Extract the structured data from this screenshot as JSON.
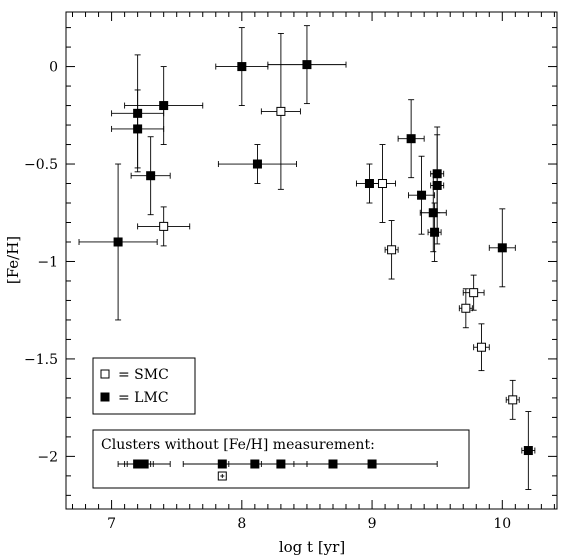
{
  "chart_data": {
    "type": "scatter",
    "xlabel": "log t [yr]",
    "ylabel": "[Fe/H]",
    "xlim": [
      6.65,
      10.42
    ],
    "ylim": [
      -2.27,
      0.28
    ],
    "x_ticks": [
      7,
      8,
      9,
      10
    ],
    "x_tick_labels": [
      "7",
      "8",
      "9",
      "10"
    ],
    "y_ticks": [
      0,
      -0.5,
      -1,
      -1.5,
      -2
    ],
    "y_tick_labels": [
      "0",
      "−0.5",
      "−1",
      "−1.5",
      "−2"
    ],
    "grid": false,
    "legend": {
      "position": "bottom-left",
      "entries": [
        {
          "label": "= SMC",
          "marker": "open-square"
        },
        {
          "label": "= LMC",
          "marker": "filled-square"
        }
      ]
    },
    "series": [
      {
        "name": "SMC",
        "marker": "open-square",
        "points": [
          {
            "x": 7.4,
            "y": -0.82,
            "xerr": 0.2,
            "yerr": 0.1
          },
          {
            "x": 8.3,
            "y": -0.23,
            "xerr": 0.15,
            "yerr": 0.4
          },
          {
            "x": 9.08,
            "y": -0.6,
            "xerr": 0.1,
            "yerr": 0.2
          },
          {
            "x": 9.15,
            "y": -0.94,
            "xerr": 0.05,
            "yerr": 0.15
          },
          {
            "x": 9.72,
            "y": -1.24,
            "xerr": 0.05,
            "yerr": 0.1
          },
          {
            "x": 9.78,
            "y": -1.16,
            "xerr": 0.08,
            "yerr": 0.09
          },
          {
            "x": 9.84,
            "y": -1.44,
            "xerr": 0.06,
            "yerr": 0.12
          },
          {
            "x": 10.08,
            "y": -1.71,
            "xerr": 0.05,
            "yerr": 0.1
          }
        ]
      },
      {
        "name": "LMC",
        "marker": "filled-square",
        "points": [
          {
            "x": 7.05,
            "y": -0.9,
            "xerr": 0.3,
            "yerr": 0.4
          },
          {
            "x": 7.2,
            "y": -0.24,
            "xerr": 0.2,
            "yerr": 0.3
          },
          {
            "x": 7.2,
            "y": -0.32,
            "xerr": 0.2,
            "yerr": 0.2
          },
          {
            "x": 7.3,
            "y": -0.56,
            "xerr": 0.15,
            "yerr": 0.2
          },
          {
            "x": 7.4,
            "y": -0.2,
            "xerr": 0.3,
            "yerr": 0.2
          },
          {
            "x": 8.0,
            "y": 0.0,
            "xerr": 0.2,
            "yerr": 0.2
          },
          {
            "x": 8.12,
            "y": -0.5,
            "xerr": 0.3,
            "yerr": 0.1
          },
          {
            "x": 8.5,
            "y": 0.01,
            "xerr": 0.3,
            "yerr": 0.2
          },
          {
            "x": 8.98,
            "y": -0.6,
            "xerr": 0.1,
            "yerr": 0.1
          },
          {
            "x": 9.3,
            "y": -0.37,
            "xerr": 0.1,
            "yerr": 0.2
          },
          {
            "x": 9.38,
            "y": -0.66,
            "xerr": 0.1,
            "yerr": 0.2
          },
          {
            "x": 9.47,
            "y": -0.75,
            "xerr": 0.1,
            "yerr": 0.2
          },
          {
            "x": 9.48,
            "y": -0.85,
            "xerr": 0.05,
            "yerr": 0.15
          },
          {
            "x": 9.5,
            "y": -0.55,
            "xerr": 0.05,
            "yerr": 0.2
          },
          {
            "x": 9.5,
            "y": -0.61,
            "xerr": 0.05,
            "yerr": 0.3
          },
          {
            "x": 10.0,
            "y": -0.93,
            "xerr": 0.1,
            "yerr": 0.2
          },
          {
            "x": 10.2,
            "y": -1.97,
            "xerr": 0.05,
            "yerr": 0.2
          }
        ]
      }
    ],
    "no_feh_box": {
      "title": "Clusters without [Fe/H] measurement:",
      "filled": [
        {
          "x": 7.2,
          "xerr": 0.1
        },
        {
          "x": 7.22,
          "xerr": 0.1
        },
        {
          "x": 7.25,
          "xerr": 0.2
        },
        {
          "x": 7.85,
          "xerr": 0.3
        },
        {
          "x": 8.1,
          "xerr": 0.2
        },
        {
          "x": 8.3,
          "xerr": 0.2
        },
        {
          "x": 8.7,
          "xerr": 0.3
        },
        {
          "x": 9.0,
          "xerr": 0.5
        }
      ],
      "open": [
        {
          "x": 7.85
        }
      ]
    }
  }
}
